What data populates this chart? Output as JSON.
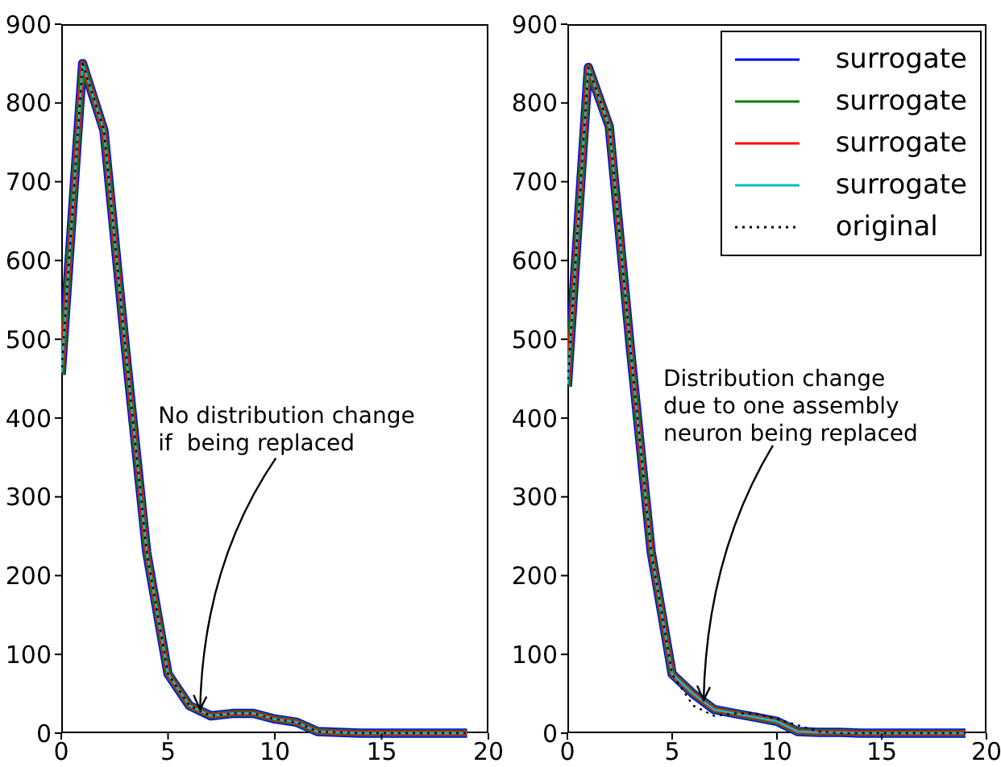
{
  "chart_data": [
    {
      "type": "line",
      "x": [
        0,
        1,
        2,
        3,
        4,
        5,
        6,
        7,
        8,
        9,
        10,
        11,
        12,
        13,
        14,
        15,
        16,
        17,
        18,
        19
      ],
      "xlim": [
        0,
        20
      ],
      "xticks": [
        0,
        5,
        10,
        15,
        20
      ],
      "ylim": [
        0,
        900
      ],
      "yticks": [
        0,
        100,
        200,
        300,
        400,
        500,
        600,
        700,
        800,
        900
      ],
      "grid": false,
      "legend": false,
      "series": [
        {
          "color": "#0000ff",
          "values": [
            455,
            850,
            765,
            490,
            230,
            75,
            35,
            22,
            25,
            25,
            18,
            14,
            2,
            1,
            0,
            0,
            0,
            0,
            0,
            0
          ]
        },
        {
          "color": "#008000",
          "values": [
            455,
            850,
            765,
            490,
            230,
            75,
            35,
            22,
            25,
            25,
            18,
            14,
            2,
            1,
            0,
            0,
            0,
            0,
            0,
            0
          ]
        },
        {
          "color": "#ff0000",
          "values": [
            455,
            850,
            765,
            490,
            230,
            75,
            35,
            22,
            25,
            25,
            18,
            14,
            2,
            1,
            0,
            0,
            0,
            0,
            0,
            0
          ]
        },
        {
          "color": "#00bfbf",
          "values": [
            455,
            850,
            765,
            490,
            230,
            75,
            35,
            22,
            25,
            25,
            18,
            14,
            2,
            1,
            0,
            0,
            0,
            0,
            0,
            0
          ]
        },
        {
          "color": "#000000",
          "line_style": "dotted",
          "values": [
            455,
            850,
            765,
            490,
            230,
            75,
            35,
            22,
            25,
            25,
            18,
            14,
            2,
            1,
            0,
            0,
            0,
            0,
            0,
            0
          ]
        }
      ],
      "annotations": [
        {
          "text": "No distribution change\nif  being replaced",
          "x": 6.5,
          "y": 28
        }
      ]
    },
    {
      "type": "line",
      "x": [
        0,
        1,
        2,
        3,
        4,
        5,
        6,
        7,
        8,
        9,
        10,
        11,
        12,
        13,
        14,
        15,
        16,
        17,
        18,
        19
      ],
      "xlim": [
        0,
        20
      ],
      "xticks": [
        0,
        5,
        10,
        15,
        20
      ],
      "ylim": [
        0,
        900
      ],
      "yticks": [
        0,
        100,
        200,
        300,
        400,
        500,
        600,
        700,
        800,
        900
      ],
      "grid": false,
      "legend": "top right",
      "series": [
        {
          "name": "surrogate",
          "color": "#0000ff",
          "values": [
            440,
            845,
            770,
            490,
            230,
            75,
            50,
            30,
            25,
            20,
            15,
            2,
            1,
            1,
            0,
            0,
            0,
            0,
            0,
            0
          ]
        },
        {
          "name": "surrogate",
          "color": "#008000",
          "values": [
            440,
            845,
            770,
            490,
            230,
            75,
            50,
            30,
            25,
            20,
            15,
            2,
            1,
            1,
            0,
            0,
            0,
            0,
            0,
            0
          ]
        },
        {
          "name": "surrogate",
          "color": "#ff0000",
          "values": [
            440,
            845,
            770,
            490,
            230,
            75,
            50,
            30,
            25,
            20,
            15,
            2,
            1,
            1,
            0,
            0,
            0,
            0,
            0,
            0
          ]
        },
        {
          "name": "surrogate",
          "color": "#00bfbf",
          "values": [
            440,
            845,
            770,
            490,
            230,
            75,
            50,
            30,
            25,
            20,
            15,
            2,
            1,
            1,
            0,
            0,
            0,
            0,
            0,
            0
          ]
        },
        {
          "name": "original",
          "color": "#000000",
          "line_style": "dotted",
          "values": [
            440,
            845,
            770,
            490,
            230,
            75,
            35,
            22,
            25,
            25,
            18,
            10,
            2,
            0,
            0,
            0,
            0,
            0,
            0,
            0
          ]
        }
      ],
      "annotations": [
        {
          "text": "Distribution change\ndue to one assembly\nneuron being replaced",
          "x": 6.5,
          "y": 40
        }
      ]
    }
  ]
}
